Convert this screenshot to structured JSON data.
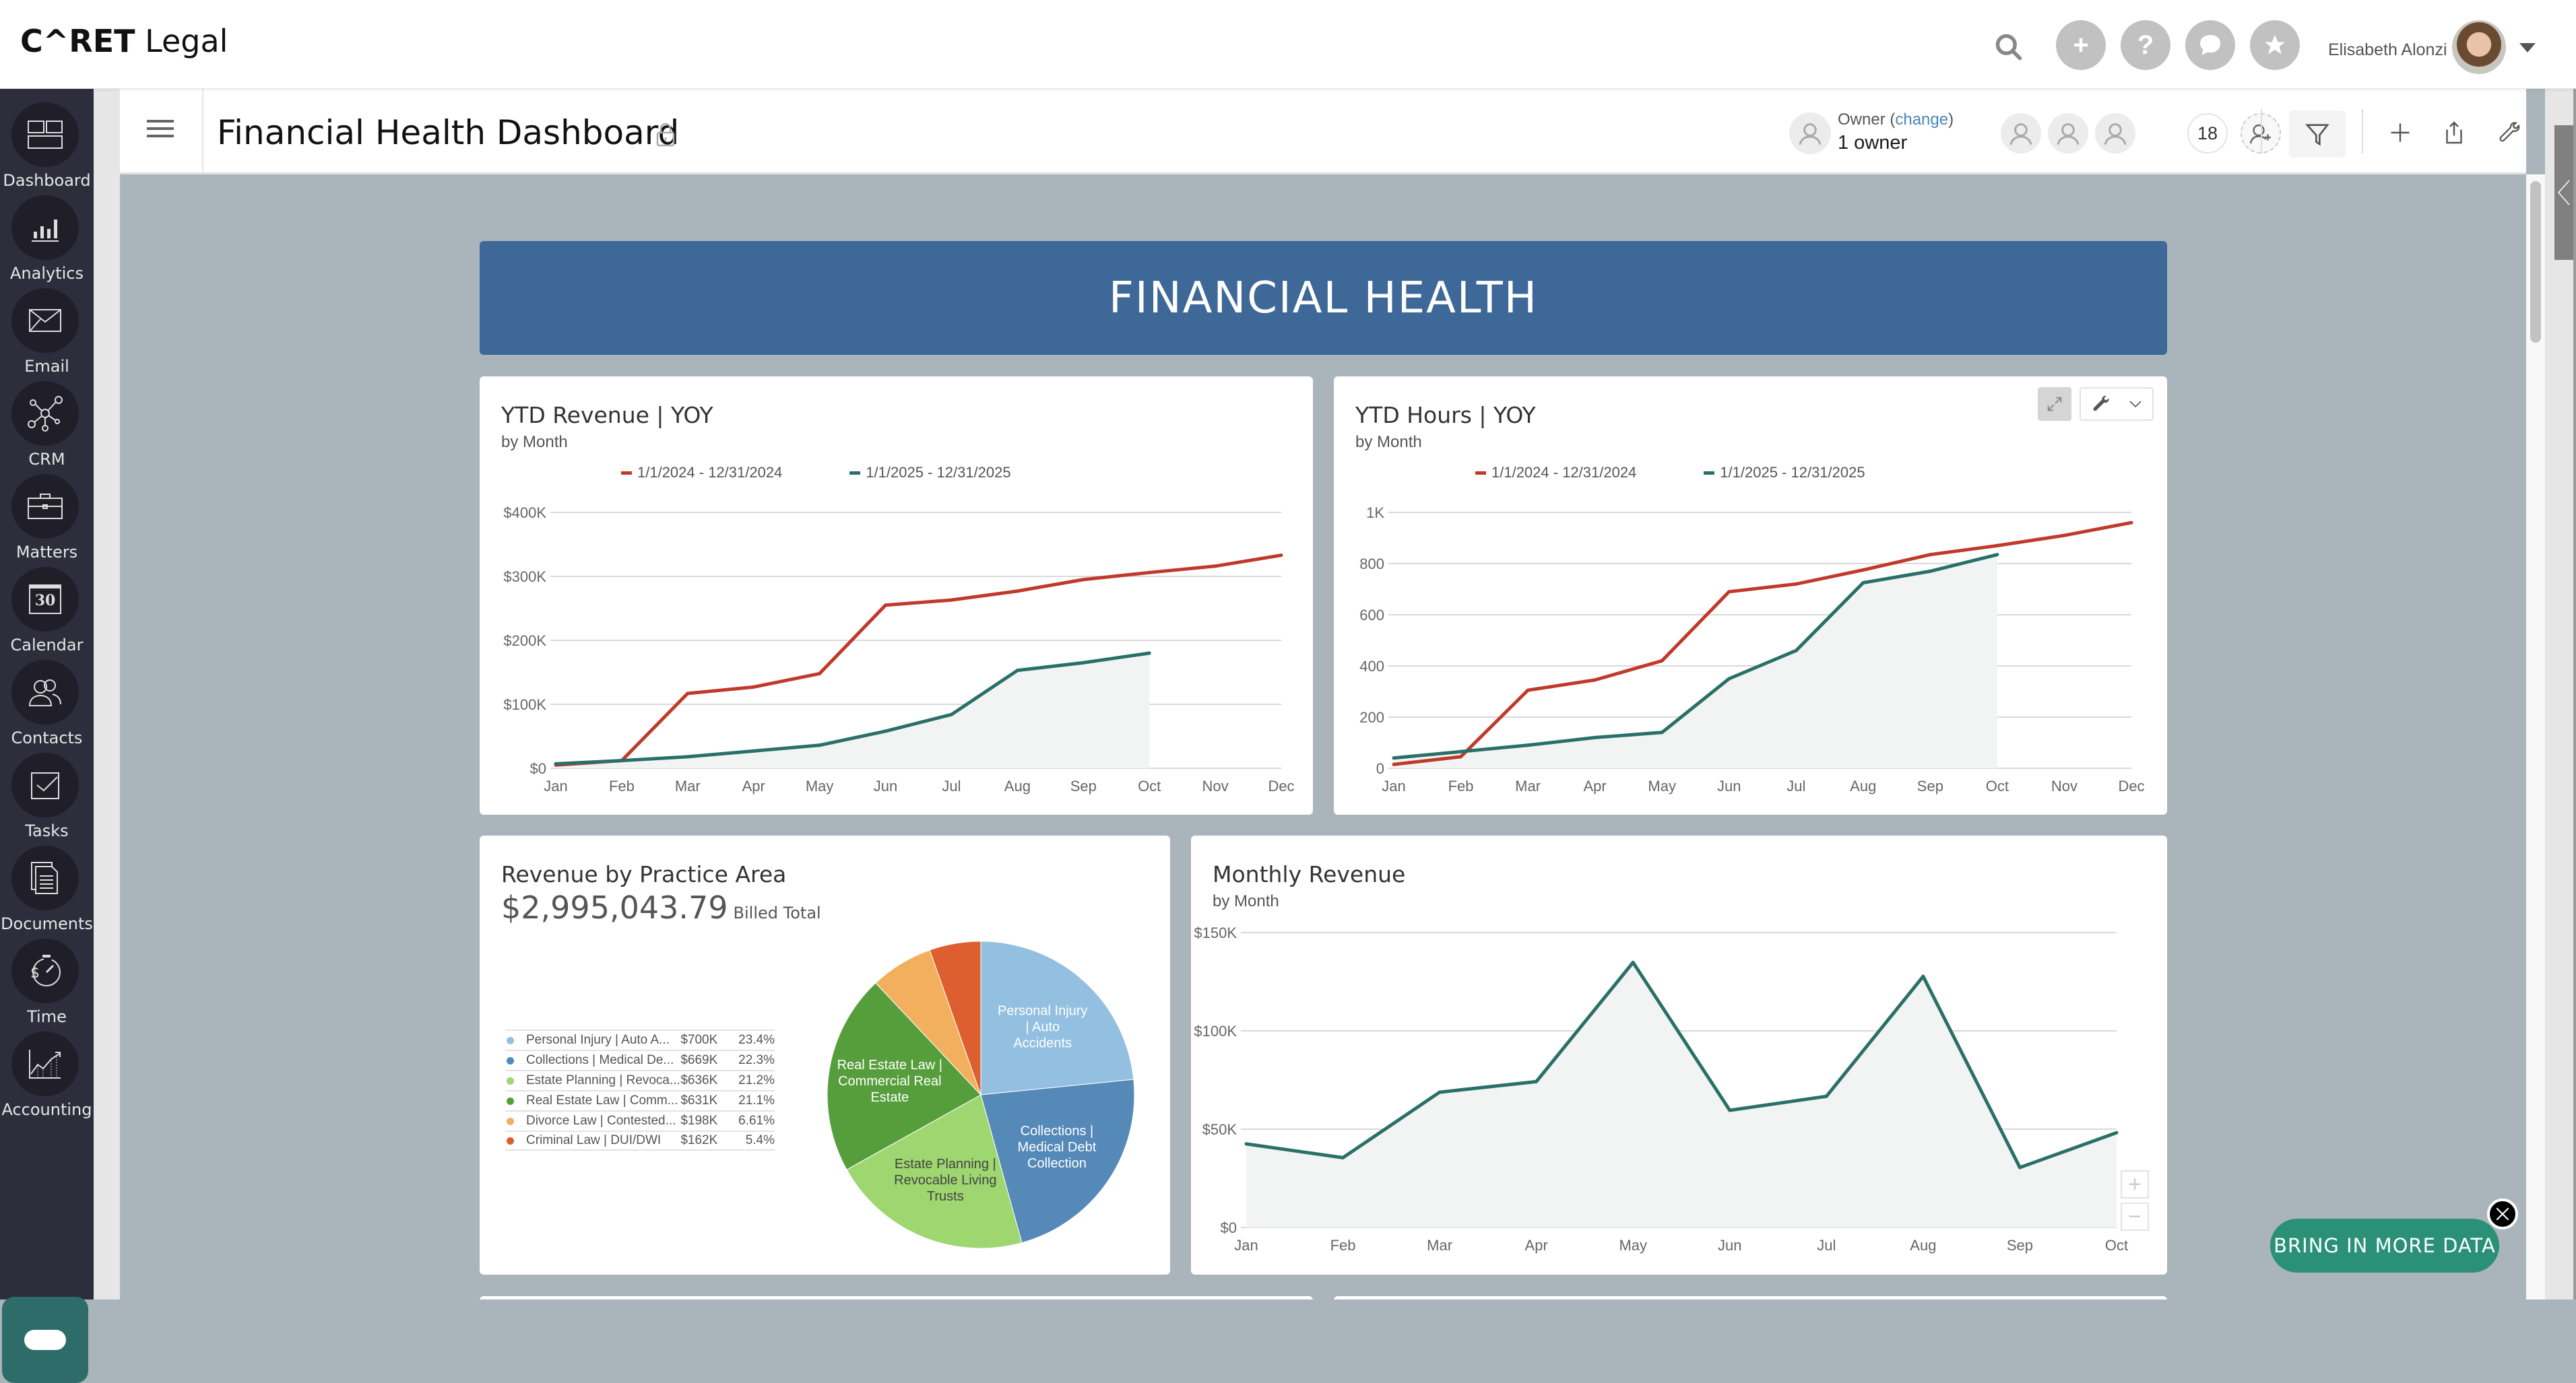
{
  "app": {
    "logo_caret": "C^RET",
    "logo_legal": "Legal",
    "user_name": "Elisabeth Alonzi"
  },
  "topbar_icons": [
    "search-icon",
    "plus-icon",
    "help-icon",
    "chat-icon",
    "star-icon"
  ],
  "sidebar": {
    "items": [
      {
        "label": "Dashboard",
        "icon": "dashboard-icon"
      },
      {
        "label": "Analytics",
        "icon": "analytics-icon"
      },
      {
        "label": "Email",
        "icon": "email-icon"
      },
      {
        "label": "CRM",
        "icon": "crm-icon"
      },
      {
        "label": "Matters",
        "icon": "briefcase-icon"
      },
      {
        "label": "Calendar",
        "icon": "calendar-icon"
      },
      {
        "label": "Contacts",
        "icon": "contacts-icon"
      },
      {
        "label": "Tasks",
        "icon": "tasks-icon"
      },
      {
        "label": "Documents",
        "icon": "documents-icon"
      },
      {
        "label": "Time",
        "icon": "stopwatch-icon"
      },
      {
        "label": "Accounting",
        "icon": "accounting-icon"
      }
    ],
    "calendar_day": "30"
  },
  "header": {
    "title": "Financial Health Dashboard",
    "owner_label": "Owner",
    "owner_change": "change",
    "owner_count": "1 owner",
    "member_count": "18"
  },
  "banner": {
    "title": "FINANCIAL HEALTH"
  },
  "cta": {
    "bring_data": "BRING IN MORE DATA"
  },
  "chart_data": [
    {
      "id": "ytd_revenue",
      "type": "line",
      "title": "YTD Revenue | YOY",
      "subtitle": "by Month",
      "categories": [
        "Jan",
        "Feb",
        "Mar",
        "Apr",
        "May",
        "Jun",
        "Jul",
        "Aug",
        "Sep",
        "Oct",
        "Nov",
        "Dec"
      ],
      "series": [
        {
          "name": "1/1/2024 - 12/31/2024",
          "color": "#c0392b",
          "values": [
            5000,
            12000,
            117000,
            127000,
            148000,
            255000,
            263000,
            277000,
            295000,
            306000,
            316000,
            333000
          ]
        },
        {
          "name": "1/1/2025 - 12/31/2025",
          "color": "#2a7068",
          "values": [
            7000,
            12000,
            18000,
            27000,
            36000,
            58000,
            84000,
            153000,
            165000,
            180000
          ],
          "area": true
        }
      ],
      "ylim": [
        0,
        400000
      ],
      "yticks": [
        0,
        100000,
        200000,
        300000,
        400000
      ],
      "ytick_labels": [
        "$0",
        "$100K",
        "$200K",
        "$300K",
        "$400K"
      ],
      "grid": true,
      "legend": "top-center"
    },
    {
      "id": "ytd_hours",
      "type": "line",
      "title": "YTD Hours | YOY",
      "subtitle": "by Month",
      "categories": [
        "Jan",
        "Feb",
        "Mar",
        "Apr",
        "May",
        "Jun",
        "Jul",
        "Aug",
        "Sep",
        "Oct",
        "Nov",
        "Dec"
      ],
      "series": [
        {
          "name": "1/1/2024 - 12/31/2024",
          "color": "#c0392b",
          "values": [
            15,
            45,
            305,
            345,
            420,
            690,
            720,
            775,
            835,
            870,
            910,
            960
          ]
        },
        {
          "name": "1/1/2025 - 12/31/2025",
          "color": "#2a7068",
          "values": [
            40,
            65,
            90,
            120,
            140,
            350,
            460,
            725,
            770,
            835
          ],
          "area": true
        }
      ],
      "ylim": [
        0,
        1000
      ],
      "yticks": [
        0,
        200,
        400,
        600,
        800,
        1000
      ],
      "ytick_labels": [
        "0",
        "200",
        "400",
        "600",
        "800",
        "1K"
      ],
      "grid": true,
      "legend": "top-center"
    },
    {
      "id": "revenue_by_practice",
      "type": "pie",
      "title": "Revenue by Practice Area",
      "total": "$2,995,043.79",
      "total_label": "Billed Total",
      "slices": [
        {
          "name": "Personal Injury | Auto Accidents",
          "short": "Personal Injury | Auto A...",
          "value_label": "$700K",
          "pct_label": "23.4%",
          "pct": 23.4,
          "color": "#93c0e0",
          "label_lines": [
            "Personal Injury",
            "| Auto",
            "Accidents"
          ]
        },
        {
          "name": "Collections | Medical Debt Collection",
          "short": "Collections | Medical De...",
          "value_label": "$669K",
          "pct_label": "22.3%",
          "pct": 22.3,
          "color": "#5589b8",
          "label_lines": [
            "Collections |",
            "Medical Debt",
            "Collection"
          ]
        },
        {
          "name": "Estate Planning | Revocable Living Trusts",
          "short": "Estate Planning | Revoca...",
          "value_label": "$636K",
          "pct_label": "21.2%",
          "pct": 21.2,
          "color": "#9ed670",
          "label_lines": [
            "Estate Planning |",
            "Revocable Living",
            "Trusts"
          ],
          "dark_label": true
        },
        {
          "name": "Real Estate Law | Commercial Real Estate",
          "short": "Real Estate Law | Comm...",
          "value_label": "$631K",
          "pct_label": "21.1%",
          "pct": 21.1,
          "color": "#569e3c",
          "label_lines": [
            "Real Estate Law |",
            "Commercial Real",
            "Estate"
          ]
        },
        {
          "name": "Divorce Law | Contested",
          "short": "Divorce Law | Contested...",
          "value_label": "$198K",
          "pct_label": "6.61%",
          "pct": 6.61,
          "color": "#f2b05e",
          "label_lines": []
        },
        {
          "name": "Criminal Law | DUI/DWI",
          "short": "Criminal Law | DUI/DWI",
          "value_label": "$162K",
          "pct_label": "5.4%",
          "pct": 5.4,
          "color": "#dd5e2f",
          "label_lines": []
        }
      ]
    },
    {
      "id": "monthly_revenue",
      "type": "area",
      "title": "Monthly Revenue",
      "subtitle": "by Month",
      "categories": [
        "Jan",
        "Feb",
        "Mar",
        "Apr",
        "May",
        "Jun",
        "Jul",
        "Aug",
        "Sep",
        "Oct"
      ],
      "series": [
        {
          "name": "Monthly Revenue",
          "color": "#2a7068",
          "values": [
            42500,
            35500,
            68800,
            74200,
            134800,
            59600,
            66700,
            127700,
            30500,
            48200
          ]
        }
      ],
      "ylim": [
        0,
        150000
      ],
      "yticks": [
        0,
        50000,
        100000,
        150000
      ],
      "ytick_labels": [
        "$0",
        "$50K",
        "$100K",
        "$150K"
      ],
      "grid": true
    }
  ]
}
